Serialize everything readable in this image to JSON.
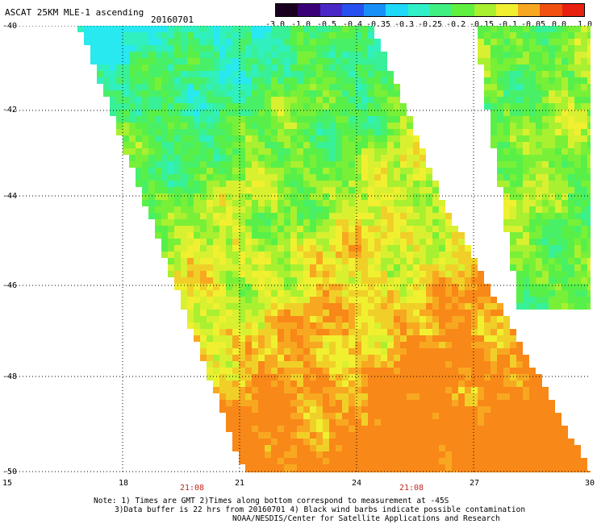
{
  "title": "ASCAT 25KM MLE-1 ascending",
  "date": "20160701",
  "colorbar": {
    "labels": [
      "-3.0",
      "-1.0",
      "-0.5",
      "-0.4",
      "-0.35",
      "-0.3",
      "-0.25",
      "-0.2",
      "-0.15",
      "-0.1",
      "-0.05",
      "0.0",
      "1.0"
    ],
    "colors": [
      "#1a0020",
      "#3a0078",
      "#4a28c8",
      "#2850f0",
      "#1890f8",
      "#20d8f8",
      "#30f0c8",
      "#40f080",
      "#60f040",
      "#a8f030",
      "#f0f030",
      "#f8a820",
      "#f05010",
      "#e82010"
    ]
  },
  "map": {
    "lat_labels": [
      "-40",
      "-42",
      "-44",
      "-46",
      "-48",
      "-50"
    ],
    "lon_labels": [
      "15",
      "18",
      "21",
      "24",
      "27",
      "30"
    ],
    "time_labels": [
      "21:08",
      "21:08"
    ]
  },
  "notes": [
    "Note: 1) Times are GMT 2)Times along bottom correspond to measurement at -45S",
    "3)Data buffer is 22 hrs from 20160701 4) Black wind barbs indicate possible contamination",
    "NOAA/NESDIS/Center for Satellite Applications and Research"
  ]
}
